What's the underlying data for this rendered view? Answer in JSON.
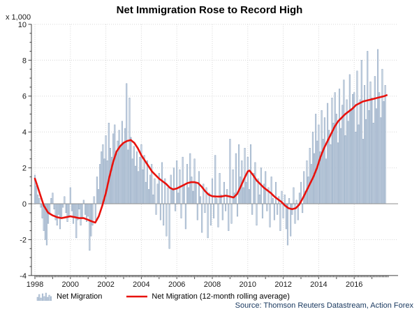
{
  "title": "Net Immigration Rose to Record High",
  "y_axis_unit": "x 1,000",
  "source": "Source: Thomson Reuters Datastream, Action Forex",
  "legend": {
    "bar_label": "Net Migration",
    "line_label": "Net Migration (12-month rolling average)"
  },
  "colors": {
    "bar_fill": "#c9d5e3",
    "bar_stroke": "#8da4bf",
    "line": "#e8120d",
    "grid": "#d6d6d6",
    "zero_line": "#8f8f8f",
    "axis": "#404040",
    "tick_label": "#1a1a1a",
    "source_text": "#17375e"
  },
  "chart_data": {
    "type": "bar",
    "title": "Net Immigration Rose to Record High",
    "xlabel": "",
    "ylabel": "x 1,000",
    "grid": true,
    "legend_position": "bottom",
    "xlim": [
      1997.8,
      2018.1
    ],
    "ylim": [
      -4,
      10
    ],
    "y_ticks": [
      -4,
      -2,
      0,
      2,
      4,
      6,
      8,
      10
    ],
    "x_ticks": [
      1998,
      2000,
      2002,
      2004,
      2006,
      2008,
      2010,
      2012,
      2014,
      2016
    ],
    "series": [
      {
        "name": "Net Migration",
        "type": "bar",
        "start": "1998-01",
        "frequency": "monthly",
        "values": [
          1.6,
          1.0,
          0.5,
          0.3,
          -0.2,
          -0.8,
          -1.5,
          -2.0,
          -2.3,
          -1.1,
          -0.5,
          0.3,
          0.6,
          -0.3,
          -0.9,
          -1.2,
          -0.6,
          -1.4,
          -0.8,
          -0.2,
          0.4,
          -0.5,
          -1.0,
          -0.7,
          0.9,
          -0.4,
          -1.1,
          -0.7,
          -1.9,
          -0.9,
          -0.3,
          -1.2,
          -0.8,
          0.2,
          -0.6,
          -1.0,
          -0.7,
          -2.6,
          -1.8,
          -1.2,
          0.4,
          -0.9,
          1.5,
          0.8,
          2.2,
          2.9,
          3.3,
          2.5,
          3.8,
          2.4,
          4.5,
          3.1,
          2.6,
          3.9,
          4.4,
          2.8,
          3.5,
          4.1,
          3.2,
          4.6,
          3.4,
          4.2,
          6.7,
          3.0,
          5.9,
          3.7,
          2.5,
          3.2,
          2.1,
          2.9,
          1.8,
          2.6,
          3.3,
          1.9,
          2.7,
          1.2,
          2.4,
          0.8,
          1.6,
          2.2,
          0.5,
          1.4,
          -0.6,
          1.1,
          1.7,
          -0.9,
          2.3,
          -1.2,
          1.4,
          -1.8,
          0.9,
          -2.5,
          1.6,
          0.8,
          2.0,
          -0.4,
          2.4,
          0.6,
          1.9,
          -0.8,
          2.6,
          1.1,
          -1.4,
          2.2,
          0.9,
          2.8,
          1.5,
          0.7,
          2.5,
          1.2,
          -0.9,
          1.8,
          0.4,
          -1.6,
          1.1,
          -0.5,
          0.9,
          -1.9,
          0.6,
          -1.2,
          1.4,
          -0.8,
          2.7,
          0.3,
          -1.3,
          1.7,
          0.5,
          -0.9,
          1.2,
          -0.4,
          0.8,
          -1.5,
          3.6,
          -1.1,
          1.9,
          0.6,
          2.8,
          -0.7,
          3.3,
          1.5,
          2.4,
          0.9,
          3.1,
          1.2,
          2.6,
          0.8,
          3.3,
          -0.6,
          1.7,
          2.3,
          -1.2,
          1.4,
          0.5,
          2.0,
          -0.8,
          1.1,
          1.8,
          -0.4,
          0.9,
          -1.3,
          1.5,
          0.3,
          -0.9,
          1.2,
          -0.6,
          0.4,
          -1.5,
          0.7,
          -0.8,
          0.5,
          -1.4,
          -2.3,
          0.3,
          -1.8,
          -0.6,
          0.9,
          -1.1,
          0.2,
          -0.9,
          0.6,
          1.2,
          -0.5,
          1.8,
          0.7,
          2.4,
          1.5,
          3.1,
          2.2,
          4.0,
          2.8,
          5.0,
          3.5,
          4.4,
          2.9,
          5.2,
          3.6,
          4.8,
          2.5,
          5.6,
          4.1,
          3.3,
          5.9,
          4.5,
          6.2,
          5.0,
          3.4,
          6.4,
          4.2,
          5.5,
          6.9,
          3.8,
          5.8,
          4.6,
          7.2,
          5.3,
          6.1,
          6.2,
          4.0,
          7.4,
          4.4,
          5.8,
          8.0,
          3.6,
          6.6,
          4.7,
          8.5,
          5.2,
          6.8,
          5.9,
          4.5,
          7.1,
          5.3,
          8.6,
          6.2,
          4.8,
          7.5,
          5.7,
          6.6
        ]
      },
      {
        "name": "Net Migration (12-month rolling average)",
        "type": "line",
        "points": [
          [
            1998.0,
            1.4
          ],
          [
            1998.17,
            0.9
          ],
          [
            1998.33,
            0.4
          ],
          [
            1998.5,
            -0.1
          ],
          [
            1998.75,
            -0.5
          ],
          [
            1999.0,
            -0.65
          ],
          [
            1999.25,
            -0.75
          ],
          [
            1999.5,
            -0.8
          ],
          [
            1999.75,
            -0.75
          ],
          [
            2000.0,
            -0.7
          ],
          [
            2000.25,
            -0.75
          ],
          [
            2000.5,
            -0.8
          ],
          [
            2000.75,
            -0.8
          ],
          [
            2001.0,
            -0.9
          ],
          [
            2001.25,
            -1.0
          ],
          [
            2001.4,
            -1.05
          ],
          [
            2001.6,
            -0.7
          ],
          [
            2001.8,
            -0.1
          ],
          [
            2002.0,
            0.6
          ],
          [
            2002.2,
            1.5
          ],
          [
            2002.4,
            2.3
          ],
          [
            2002.6,
            2.9
          ],
          [
            2002.8,
            3.2
          ],
          [
            2003.0,
            3.4
          ],
          [
            2003.2,
            3.5
          ],
          [
            2003.4,
            3.55
          ],
          [
            2003.6,
            3.4
          ],
          [
            2003.8,
            3.1
          ],
          [
            2004.0,
            2.7
          ],
          [
            2004.2,
            2.4
          ],
          [
            2004.4,
            2.1
          ],
          [
            2004.6,
            1.8
          ],
          [
            2004.8,
            1.6
          ],
          [
            2005.0,
            1.4
          ],
          [
            2005.2,
            1.25
          ],
          [
            2005.4,
            1.1
          ],
          [
            2005.6,
            0.9
          ],
          [
            2005.8,
            0.8
          ],
          [
            2006.0,
            0.85
          ],
          [
            2006.2,
            0.95
          ],
          [
            2006.4,
            1.05
          ],
          [
            2006.6,
            1.15
          ],
          [
            2006.8,
            1.2
          ],
          [
            2007.0,
            1.2
          ],
          [
            2007.2,
            1.15
          ],
          [
            2007.4,
            0.95
          ],
          [
            2007.6,
            0.7
          ],
          [
            2007.8,
            0.5
          ],
          [
            2008.0,
            0.42
          ],
          [
            2008.25,
            0.4
          ],
          [
            2008.5,
            0.4
          ],
          [
            2008.75,
            0.45
          ],
          [
            2009.0,
            0.4
          ],
          [
            2009.2,
            0.35
          ],
          [
            2009.4,
            0.55
          ],
          [
            2009.6,
            0.95
          ],
          [
            2009.8,
            1.4
          ],
          [
            2010.0,
            1.8
          ],
          [
            2010.1,
            1.85
          ],
          [
            2010.3,
            1.6
          ],
          [
            2010.5,
            1.3
          ],
          [
            2010.7,
            1.1
          ],
          [
            2010.9,
            0.9
          ],
          [
            2011.1,
            0.75
          ],
          [
            2011.3,
            0.6
          ],
          [
            2011.5,
            0.4
          ],
          [
            2011.7,
            0.25
          ],
          [
            2011.9,
            0.1
          ],
          [
            2012.1,
            -0.1
          ],
          [
            2012.3,
            -0.25
          ],
          [
            2012.5,
            -0.3
          ],
          [
            2012.7,
            -0.25
          ],
          [
            2012.9,
            -0.05
          ],
          [
            2013.1,
            0.3
          ],
          [
            2013.3,
            0.7
          ],
          [
            2013.5,
            1.1
          ],
          [
            2013.7,
            1.5
          ],
          [
            2013.9,
            2.0
          ],
          [
            2014.1,
            2.6
          ],
          [
            2014.3,
            3.1
          ],
          [
            2014.5,
            3.5
          ],
          [
            2014.7,
            3.9
          ],
          [
            2014.9,
            4.3
          ],
          [
            2015.1,
            4.6
          ],
          [
            2015.3,
            4.8
          ],
          [
            2015.5,
            5.0
          ],
          [
            2015.7,
            5.15
          ],
          [
            2015.9,
            5.3
          ],
          [
            2016.1,
            5.5
          ],
          [
            2016.3,
            5.6
          ],
          [
            2016.5,
            5.7
          ],
          [
            2016.7,
            5.75
          ],
          [
            2016.9,
            5.8
          ],
          [
            2017.1,
            5.85
          ],
          [
            2017.3,
            5.9
          ],
          [
            2017.5,
            5.95
          ],
          [
            2017.7,
            6.0
          ],
          [
            2017.83,
            6.05
          ]
        ]
      }
    ]
  }
}
